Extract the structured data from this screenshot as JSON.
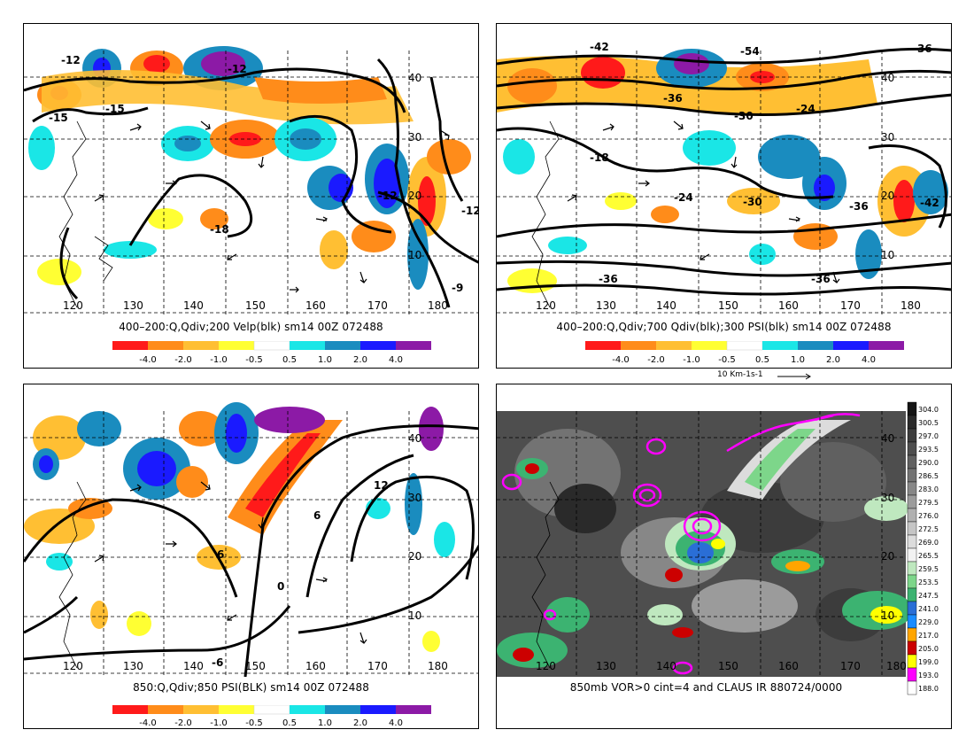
{
  "panels": [
    {
      "title": "400–200:Q,Qdiv;200 Velp(blk) sm14 00Z 072488",
      "colorbar_labels": [
        "-4.0",
        "-2.0",
        "-1.0",
        "-0.5",
        "0.5",
        "1.0",
        "2.0",
        "4.0"
      ],
      "lon_labels": [
        "120",
        "130",
        "140",
        "150",
        "160",
        "170",
        "180"
      ],
      "lat_labels": [
        "40",
        "30",
        "20",
        "10"
      ],
      "contour_labels": [
        "-12",
        "-12",
        "-15",
        "-15",
        "-18",
        "-12",
        "-9",
        "-12"
      ]
    },
    {
      "title": "400–200:Q,Qdiv;700 Qdiv(blk);300 PSI(blk) sm14 00Z 072488",
      "colorbar_labels": [
        "-4.0",
        "-2.0",
        "-1.0",
        "-0.5",
        "0.5",
        "1.0",
        "2.0",
        "4.0"
      ],
      "vector_label": "10 Km-1s-1",
      "lon_labels": [
        "120",
        "130",
        "140",
        "150",
        "160",
        "170",
        "180"
      ],
      "lat_labels": [
        "40",
        "30",
        "20",
        "10"
      ],
      "contour_labels": [
        "-42",
        "-54",
        "-36",
        "-36",
        "-30",
        "-24",
        "-18",
        "-24",
        "-30",
        "-36",
        "-42",
        "-36",
        "-36"
      ]
    },
    {
      "title": "850:Q,Qdiv;850 PSI(BLK) sm14 00Z 072488",
      "colorbar_labels": [
        "-4.0",
        "-2.0",
        "-1.0",
        "-0.5",
        "0.5",
        "1.0",
        "2.0",
        "4.0"
      ],
      "lon_labels": [
        "120",
        "130",
        "140",
        "150",
        "160",
        "170",
        "180"
      ],
      "lat_labels": [
        "40",
        "30",
        "20",
        "10"
      ],
      "contour_labels": [
        "12",
        "6",
        "6",
        "0",
        "-6"
      ]
    },
    {
      "title": "850mb VOR>0 cint=4 and CLAUS IR 880724/0000",
      "lon_labels": [
        "120",
        "130",
        "140",
        "150",
        "160",
        "170",
        "180"
      ],
      "lat_labels": [
        "40",
        "30",
        "20",
        "10"
      ],
      "ir_scale": [
        "304.0",
        "300.5",
        "297.0",
        "293.5",
        "290.0",
        "286.5",
        "283.0",
        "279.5",
        "276.0",
        "272.5",
        "269.0",
        "265.5",
        "259.5",
        "253.5",
        "247.5",
        "241.0",
        "229.0",
        "217.0",
        "205.0",
        "199.0",
        "193.0",
        "188.0"
      ]
    }
  ],
  "colors": {
    "div": [
      "#ff1a1a",
      "#ff8c1a",
      "#ffbf33",
      "#ffff33",
      "#ffffff",
      "#1ae6e6",
      "#1a8cbf",
      "#1a1aff",
      "#8c1aa6"
    ],
    "ir": [
      "#151515",
      "#2a2a2a",
      "#3c3c3c",
      "#4e4e4e",
      "#606060",
      "#737373",
      "#878787",
      "#9b9b9b",
      "#b0b0b0",
      "#c5c5c5",
      "#dcdcdc",
      "#f2f2f2",
      "#bfe8bf",
      "#7dd68a",
      "#3cb371",
      "#2a6ed6",
      "#1a8cff",
      "#ffa500",
      "#cc0000",
      "#ffff00",
      "#ff00ff",
      "#ffffff"
    ],
    "vort": "#ff00ff"
  }
}
